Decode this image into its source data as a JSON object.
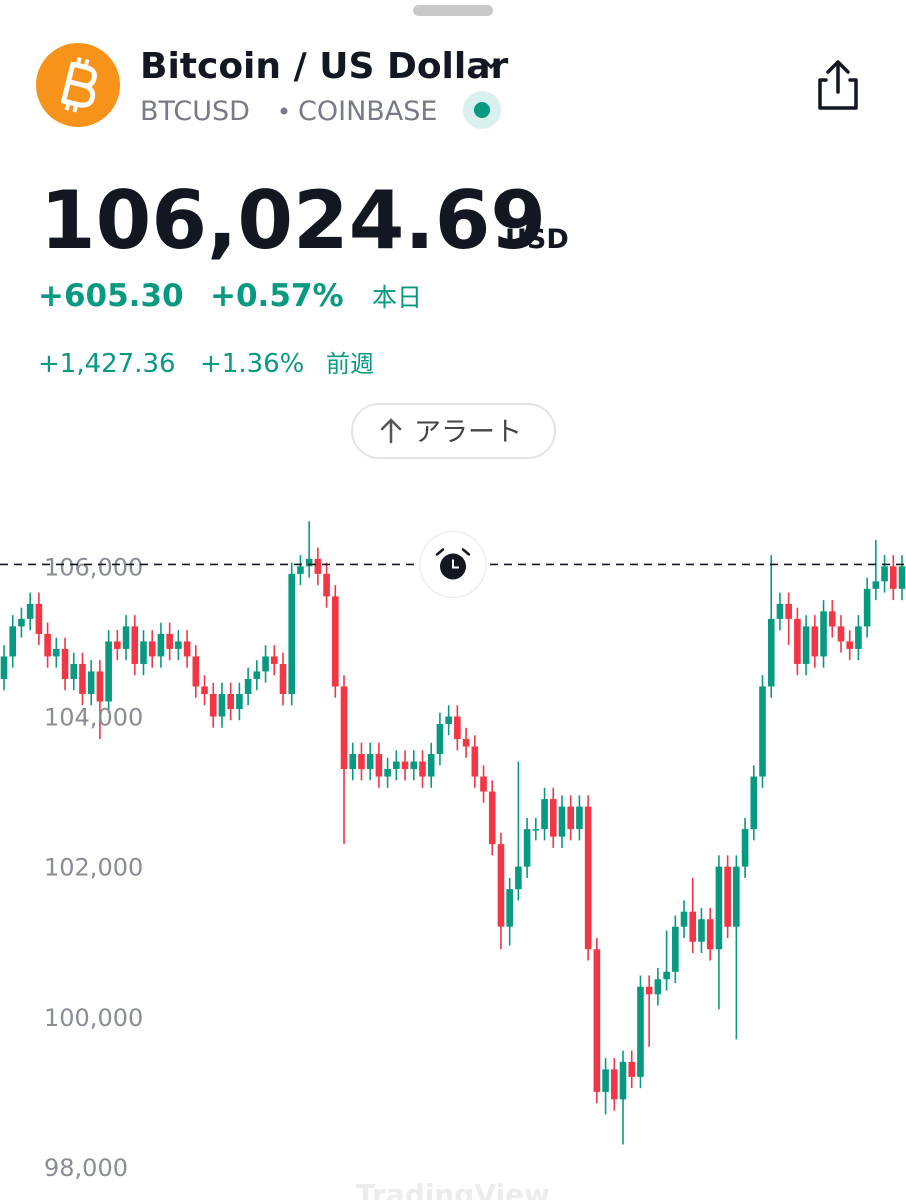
{
  "header": {
    "title": "Bitcoin / US Dollar",
    "symbol": "BTCUSD",
    "exchange": "COINBASE",
    "price": "106,024.69",
    "currency": "USD",
    "day_change": "+605.30",
    "day_change_pct": "+0.57%",
    "day_label": "本日",
    "week_change": "+1,427.36",
    "week_change_pct": "+1.36%",
    "week_label": "前週",
    "alert_button": "アラート"
  },
  "chart_data": {
    "type": "candlestick",
    "watermark": "TradingView",
    "up_color": "#089981",
    "down_color": "#f23645",
    "ylim": [
      97560,
      107150
    ],
    "yticks": [
      {
        "value": 98000,
        "label": "98,000"
      },
      {
        "value": 100000,
        "label": "100,000"
      },
      {
        "value": 102000,
        "label": "102,000"
      },
      {
        "value": 104000,
        "label": "104,000"
      },
      {
        "value": 106000,
        "label": "106,000"
      }
    ],
    "last_price_line": 106024.69,
    "ohlc": [
      [
        104500,
        104950,
        104350,
        104800
      ],
      [
        104800,
        105350,
        104650,
        105200
      ],
      [
        105200,
        105450,
        105050,
        105300
      ],
      [
        105300,
        105650,
        105150,
        105500
      ],
      [
        105500,
        105650,
        104950,
        105100
      ],
      [
        105100,
        105250,
        104650,
        104800
      ],
      [
        104800,
        105050,
        104650,
        104900
      ],
      [
        104900,
        105050,
        104350,
        104500
      ],
      [
        104500,
        104850,
        104350,
        104700
      ],
      [
        104700,
        104850,
        104150,
        104300
      ],
      [
        104300,
        104750,
        104150,
        104600
      ],
      [
        104600,
        104750,
        103700,
        104200
      ],
      [
        104200,
        105150,
        104050,
        105000
      ],
      [
        105000,
        105150,
        104750,
        104900
      ],
      [
        104900,
        105350,
        104750,
        105200
      ],
      [
        105200,
        105350,
        104550,
        104700
      ],
      [
        104700,
        105150,
        104550,
        105000
      ],
      [
        105000,
        105150,
        104650,
        104800
      ],
      [
        104800,
        105250,
        104650,
        105100
      ],
      [
        105100,
        105250,
        104750,
        104900
      ],
      [
        104900,
        105150,
        104750,
        105000
      ],
      [
        105000,
        105150,
        104650,
        104800
      ],
      [
        104800,
        104950,
        104250,
        104400
      ],
      [
        104400,
        104550,
        104150,
        104300
      ],
      [
        104300,
        104450,
        103850,
        104000
      ],
      [
        104000,
        104450,
        103850,
        104300
      ],
      [
        104300,
        104450,
        103950,
        104100
      ],
      [
        104100,
        104450,
        103950,
        104300
      ],
      [
        104300,
        104650,
        104150,
        104500
      ],
      [
        104500,
        104750,
        104350,
        104600
      ],
      [
        104600,
        104950,
        104450,
        104800
      ],
      [
        104800,
        104950,
        104550,
        104700
      ],
      [
        104700,
        104850,
        104150,
        104300
      ],
      [
        104300,
        106050,
        104150,
        105900
      ],
      [
        105900,
        106150,
        105750,
        106000
      ],
      [
        106000,
        106600,
        105850,
        106100
      ],
      [
        106100,
        106250,
        105750,
        105900
      ],
      [
        105900,
        106050,
        105450,
        105600
      ],
      [
        105600,
        105750,
        104250,
        104400
      ],
      [
        104400,
        104550,
        102300,
        103300
      ],
      [
        103300,
        103650,
        103150,
        103500
      ],
      [
        103500,
        103650,
        103150,
        103300
      ],
      [
        103300,
        103650,
        103150,
        103500
      ],
      [
        103500,
        103650,
        103050,
        103200
      ],
      [
        103200,
        103450,
        103050,
        103300
      ],
      [
        103300,
        103550,
        103150,
        103400
      ],
      [
        103400,
        103550,
        103150,
        103300
      ],
      [
        103300,
        103550,
        103150,
        103400
      ],
      [
        103400,
        103550,
        103050,
        103200
      ],
      [
        103200,
        103650,
        103050,
        103500
      ],
      [
        103500,
        104050,
        103350,
        103900
      ],
      [
        103900,
        104150,
        103750,
        104000
      ],
      [
        104000,
        104150,
        103550,
        103700
      ],
      [
        103700,
        103850,
        103450,
        103600
      ],
      [
        103600,
        103750,
        103050,
        103200
      ],
      [
        103200,
        103350,
        102850,
        103000
      ],
      [
        103000,
        103150,
        102150,
        102300
      ],
      [
        102300,
        102450,
        100900,
        101200
      ],
      [
        101200,
        101850,
        100950,
        101700
      ],
      [
        101700,
        103400,
        101550,
        102000
      ],
      [
        102000,
        102650,
        101850,
        102500
      ],
      [
        102500,
        102650,
        102350,
        102500
      ],
      [
        102500,
        103050,
        102350,
        102900
      ],
      [
        102900,
        103050,
        102250,
        102400
      ],
      [
        102400,
        102950,
        102250,
        102800
      ],
      [
        102800,
        102950,
        102350,
        102500
      ],
      [
        102500,
        102950,
        102350,
        102800
      ],
      [
        102800,
        102950,
        100750,
        100900
      ],
      [
        100900,
        101050,
        98850,
        99000
      ],
      [
        99000,
        99450,
        98700,
        99300
      ],
      [
        99300,
        99450,
        98750,
        98900
      ],
      [
        98900,
        99550,
        98300,
        99400
      ],
      [
        99400,
        99550,
        99050,
        99200
      ],
      [
        99200,
        100550,
        99050,
        100400
      ],
      [
        100400,
        100550,
        99600,
        100300
      ],
      [
        100300,
        100650,
        100150,
        100500
      ],
      [
        100500,
        101150,
        100350,
        100600
      ],
      [
        100600,
        101350,
        100450,
        101200
      ],
      [
        101200,
        101550,
        101050,
        101400
      ],
      [
        101400,
        101850,
        100850,
        101000
      ],
      [
        101000,
        101450,
        100850,
        101300
      ],
      [
        101300,
        101450,
        100750,
        100900
      ],
      [
        100900,
        102150,
        100100,
        102000
      ],
      [
        102000,
        102150,
        101050,
        101200
      ],
      [
        101200,
        102150,
        99700,
        102000
      ],
      [
        102000,
        102650,
        101850,
        102500
      ],
      [
        102500,
        103350,
        102350,
        103200
      ],
      [
        103200,
        104550,
        103050,
        104400
      ],
      [
        104400,
        106150,
        104250,
        105300
      ],
      [
        105300,
        105650,
        105150,
        105500
      ],
      [
        105500,
        105650,
        104950,
        105300
      ],
      [
        105300,
        105450,
        104550,
        104700
      ],
      [
        104700,
        105350,
        104550,
        105200
      ],
      [
        105200,
        105350,
        104650,
        104800
      ],
      [
        104800,
        105550,
        104650,
        105400
      ],
      [
        105400,
        105550,
        105050,
        105200
      ],
      [
        105200,
        105350,
        104850,
        105000
      ],
      [
        105000,
        105150,
        104750,
        104900
      ],
      [
        104900,
        105350,
        104750,
        105200
      ],
      [
        105200,
        105850,
        105050,
        105700
      ],
      [
        105700,
        106350,
        105550,
        105800
      ],
      [
        105800,
        106150,
        105650,
        106000
      ],
      [
        106000,
        106150,
        105550,
        105700
      ],
      [
        105700,
        106150,
        105550,
        106000
      ]
    ]
  }
}
